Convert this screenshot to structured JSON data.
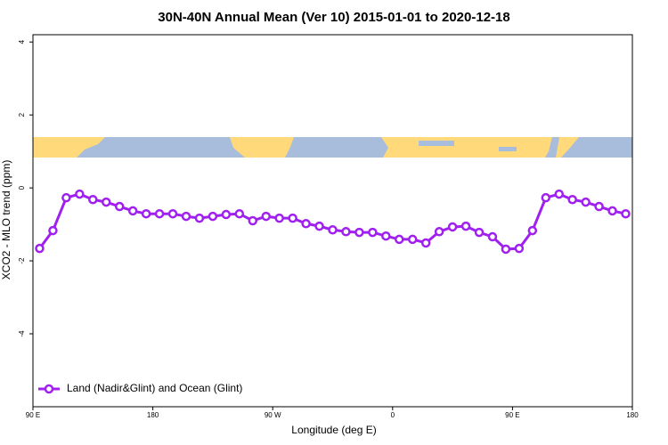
{
  "chart_data": {
    "type": "line",
    "title": "30N-40N Annual Mean (Ver 10)   2015-01-01 to 2020-12-18",
    "x_label": "Longitude (deg E)",
    "y_label": "XCO2 - MLO trend (ppm)",
    "x": [
      95,
      105,
      115,
      125,
      135,
      145,
      155,
      165,
      175,
      185,
      195,
      205,
      215,
      225,
      235,
      245,
      255,
      265,
      275,
      285,
      295,
      305,
      315,
      325,
      335,
      345,
      355,
      365,
      375,
      385,
      395,
      405,
      415,
      425,
      435,
      445,
      455,
      465,
      475,
      485,
      495,
      505,
      515,
      525,
      535
    ],
    "series": [
      {
        "name": "Land (Nadir&Glint) and Ocean (Glint)",
        "color": "#a020f0",
        "values": [
          -1.66,
          -1.17,
          -0.27,
          -0.17,
          -0.32,
          -0.39,
          -0.51,
          -0.63,
          -0.71,
          -0.71,
          -0.71,
          -0.78,
          -0.83,
          -0.78,
          -0.73,
          -0.71,
          -0.9,
          -0.78,
          -0.83,
          -0.83,
          -0.98,
          -1.05,
          -1.15,
          -1.2,
          -1.22,
          -1.22,
          -1.32,
          -1.41,
          -1.41,
          -1.51,
          -1.2,
          -1.07,
          -1.05,
          -1.22,
          -1.34,
          -1.68,
          -1.66,
          -1.17,
          -0.27,
          -0.17,
          -0.32,
          -0.39,
          -0.51,
          -0.63,
          -0.71
        ]
      }
    ],
    "xlim": [
      90,
      540
    ],
    "xticks": [
      {
        "value": 90,
        "label": "90 E"
      },
      180,
      {
        "value": 270,
        "label": "90 W"
      },
      {
        "value": 360,
        "label": "0"
      },
      {
        "value": 450,
        "label": "90 E"
      },
      {
        "value": 540,
        "label": "180"
      }
    ],
    "ylim": [
      -6,
      4.2
    ],
    "yticks": [
      -4,
      -2,
      0,
      2,
      4
    ],
    "legend": "bottom-left"
  }
}
